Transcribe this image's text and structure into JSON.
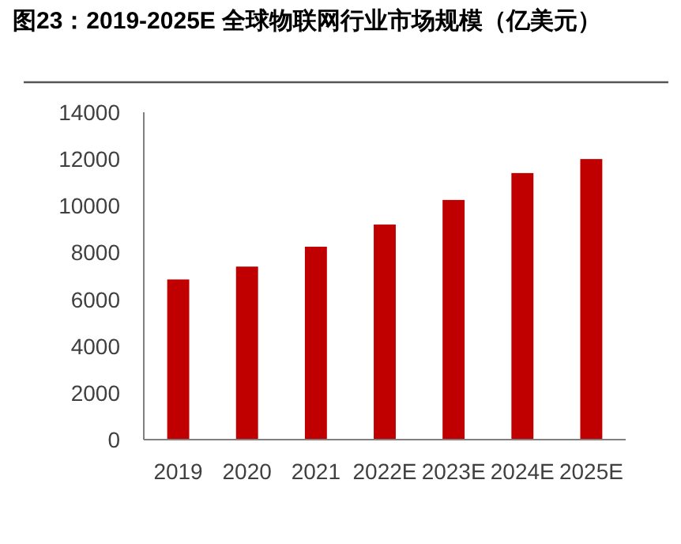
{
  "chart_data": {
    "type": "bar",
    "title": "图23：2019-2025E 全球物联网行业市场规模（亿美元）",
    "categories": [
      "2019",
      "2020",
      "2021",
      "2022E",
      "2023E",
      "2024E",
      "2025E"
    ],
    "values": [
      6850,
      7400,
      8250,
      9200,
      10250,
      11400,
      12000
    ],
    "color": "#c00000",
    "ylim": [
      0,
      14000
    ],
    "yticks": [
      0,
      2000,
      4000,
      6000,
      8000,
      10000,
      12000,
      14000
    ],
    "grid": false
  }
}
